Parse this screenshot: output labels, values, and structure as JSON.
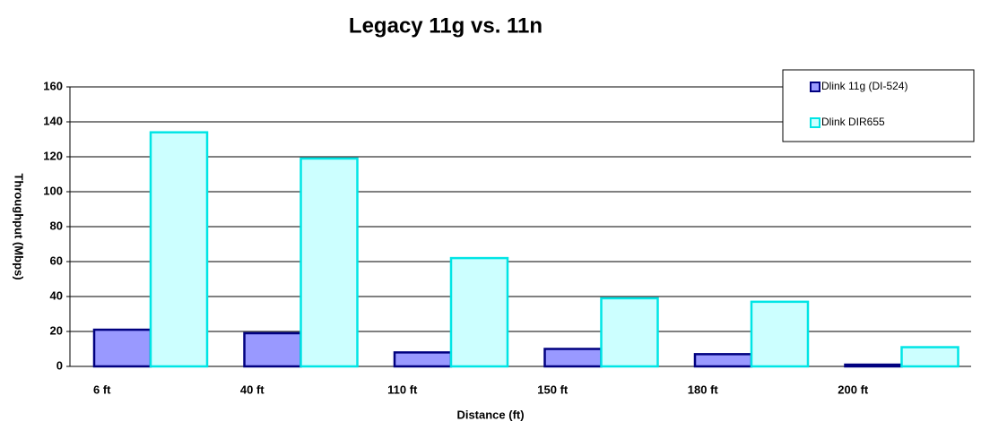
{
  "chart_data": {
    "type": "bar",
    "title": "Legacy 11g vs. 11n",
    "x_label": "Distance (ft)",
    "y_label": "Throughput (Mbps)",
    "categories": [
      "6 ft",
      "40 ft",
      "110 ft",
      "150 ft",
      "180 ft",
      "200 ft"
    ],
    "series": [
      {
        "name": "Dlink 11g (DI-524)",
        "color": "#9999ff",
        "edge": "#000080",
        "values": [
          21,
          19,
          8,
          10,
          7,
          1
        ]
      },
      {
        "name": "Dlink DIR655",
        "color": "#ccffff",
        "edge": "#00e5e5",
        "values": [
          134,
          119,
          62,
          39,
          37,
          11
        ]
      }
    ],
    "ylim": [
      0,
      160
    ],
    "yticks": [
      0,
      20,
      40,
      60,
      80,
      100,
      120,
      140,
      160
    ],
    "grid": true,
    "legend": "top-right"
  }
}
